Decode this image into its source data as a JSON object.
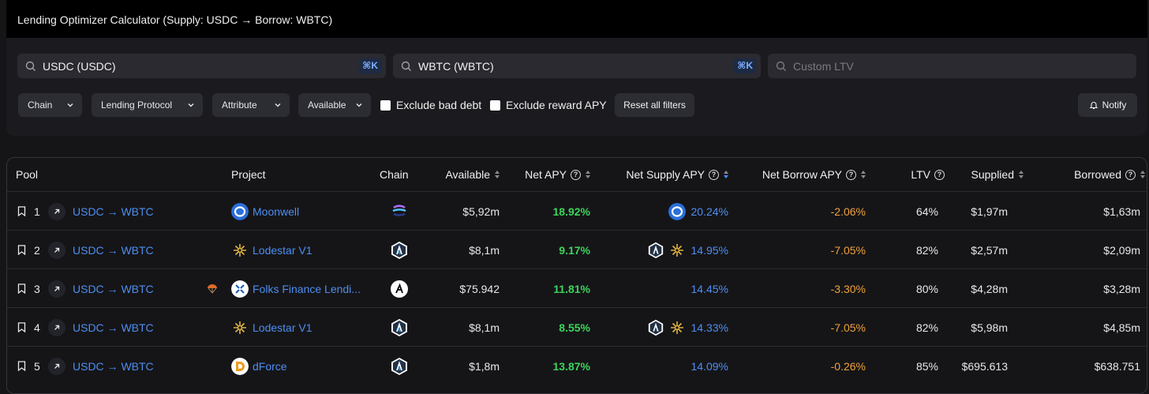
{
  "header": {
    "title": "Lending Optimizer Calculator (Supply: USDC → Borrow: WBTC)"
  },
  "search": {
    "supply_value": "USDC (USDC)",
    "supply_shortcut": "⌘K",
    "borrow_value": "WBTC (WBTC)",
    "borrow_shortcut": "⌘K",
    "ltv_placeholder": "Custom LTV"
  },
  "filters": {
    "chain": "Chain",
    "lending_protocol": "Lending Protocol",
    "attribute": "Attribute",
    "available": "Available",
    "exclude_bad_debt": "Exclude bad debt",
    "exclude_reward_apy": "Exclude reward APY",
    "reset": "Reset all filters",
    "notify": "Notify"
  },
  "table": {
    "columns": {
      "pool": "Pool",
      "project": "Project",
      "chain": "Chain",
      "available": "Available",
      "net_apy": "Net APY",
      "net_supply_apy": "Net Supply APY",
      "net_borrow_apy": "Net Borrow APY",
      "ltv": "LTV",
      "supplied": "Supplied",
      "borrowed": "Borrowed"
    },
    "rows": [
      {
        "rank": "1",
        "pool": "USDC → WBTC",
        "project": "Moonwell",
        "available": "$5,92m",
        "net_apy": "18.92%",
        "net_supply_apy": "20.24%",
        "net_borrow_apy": "-2.06%",
        "ltv": "64%",
        "supplied": "$1,97m",
        "borrowed": "$1,63m"
      },
      {
        "rank": "2",
        "pool": "USDC → WBTC",
        "project": "Lodestar V1",
        "available": "$8,1m",
        "net_apy": "9.17%",
        "net_supply_apy": "14.95%",
        "net_borrow_apy": "-7.05%",
        "ltv": "82%",
        "supplied": "$2,57m",
        "borrowed": "$2,09m"
      },
      {
        "rank": "3",
        "pool": "USDC → WBTC",
        "project": "Folks Finance Lendi...",
        "available": "$75.942",
        "net_apy": "11.81%",
        "net_supply_apy": "14.45%",
        "net_borrow_apy": "-3.30%",
        "ltv": "80%",
        "supplied": "$4,28m",
        "borrowed": "$3,28m"
      },
      {
        "rank": "4",
        "pool": "USDC → WBTC",
        "project": "Lodestar V1",
        "available": "$8,1m",
        "net_apy": "8.55%",
        "net_supply_apy": "14.33%",
        "net_borrow_apy": "-7.05%",
        "ltv": "82%",
        "supplied": "$5,98m",
        "borrowed": "$4,85m"
      },
      {
        "rank": "5",
        "pool": "USDC → WBTC",
        "project": "dForce",
        "available": "$1,8m",
        "net_apy": "13.87%",
        "net_supply_apy": "14.09%",
        "net_borrow_apy": "-0.26%",
        "ltv": "85%",
        "supplied": "$695.613",
        "borrowed": "$638.751"
      }
    ]
  },
  "colors": {
    "link": "#4d8ef0",
    "positive": "#3dd35a",
    "negative": "#f0a13a",
    "kbd": "#7fb0ff"
  }
}
